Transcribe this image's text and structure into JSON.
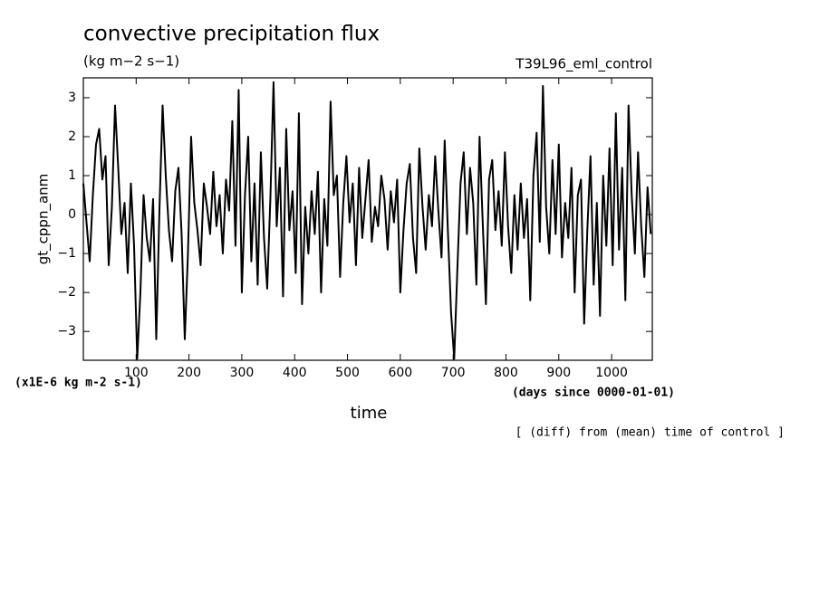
{
  "chart_data": {
    "type": "line",
    "title": "convective precipitation flux",
    "subtitle": "(kg m−2 s−1)",
    "run_label": "T39L96_eml_control",
    "ylabel": "gt_cppn_anm",
    "xlabel": "time",
    "y_unit_note": "(x1E-6 kg m-2 s-1)",
    "x_unit_note": "(days since 0000-01-01)",
    "footnote": "[ (diff) from (mean) time of control ]",
    "xlim": [
      0,
      1077
    ],
    "ylim": [
      -3.74,
      3.51
    ],
    "xticks": [
      100,
      200,
      300,
      400,
      500,
      600,
      700,
      800,
      900,
      1000
    ],
    "yticks": [
      {
        "value": -3,
        "label": "−3"
      },
      {
        "value": -2,
        "label": "−2"
      },
      {
        "value": -1,
        "label": "−1"
      },
      0,
      1,
      2,
      3
    ],
    "series": [
      {
        "color": "#000000",
        "x": [
          0,
          6,
          12,
          18,
          24,
          30,
          36,
          42,
          48,
          54,
          60,
          66,
          72,
          78,
          84,
          90,
          96,
          102,
          108,
          114,
          120,
          126,
          132,
          138,
          144,
          150,
          156,
          162,
          168,
          174,
          180,
          186,
          192,
          198,
          204,
          210,
          216,
          222,
          228,
          234,
          240,
          246,
          252,
          258,
          264,
          270,
          276,
          282,
          288,
          294,
          300,
          306,
          312,
          318,
          324,
          330,
          336,
          342,
          348,
          354,
          360,
          366,
          372,
          378,
          384,
          390,
          396,
          402,
          408,
          414,
          420,
          426,
          432,
          438,
          444,
          450,
          456,
          462,
          468,
          474,
          480,
          486,
          492,
          498,
          504,
          510,
          516,
          522,
          528,
          534,
          540,
          546,
          552,
          558,
          564,
          570,
          576,
          582,
          588,
          594,
          600,
          606,
          612,
          618,
          624,
          630,
          636,
          642,
          648,
          654,
          660,
          666,
          672,
          678,
          684,
          690,
          696,
          702,
          708,
          714,
          720,
          726,
          732,
          738,
          744,
          750,
          756,
          762,
          768,
          774,
          780,
          786,
          792,
          798,
          804,
          810,
          816,
          822,
          828,
          834,
          840,
          846,
          852,
          858,
          864,
          870,
          876,
          882,
          888,
          894,
          900,
          906,
          912,
          918,
          924,
          930,
          936,
          942,
          948,
          954,
          960,
          966,
          972,
          978,
          984,
          990,
          996,
          1002,
          1008,
          1014,
          1020,
          1026,
          1032,
          1038,
          1044,
          1050,
          1056,
          1062,
          1068,
          1074
        ],
        "values": [
          0.8,
          -0.2,
          -1.2,
          0.5,
          1.8,
          2.2,
          0.9,
          1.5,
          -1.3,
          0.2,
          2.8,
          1.2,
          -0.5,
          0.3,
          -1.5,
          0.8,
          -0.8,
          -3.7,
          -2.0,
          0.5,
          -0.6,
          -1.2,
          0.4,
          -3.2,
          0.1,
          2.8,
          1.0,
          -0.4,
          -1.2,
          0.6,
          1.2,
          -0.5,
          -3.2,
          -1.0,
          2.0,
          0.3,
          -0.4,
          -1.3,
          0.8,
          0.2,
          -0.5,
          1.1,
          -0.3,
          0.5,
          -1.0,
          0.9,
          0.1,
          2.4,
          -0.8,
          3.2,
          -2.0,
          0.5,
          2.0,
          -1.2,
          0.8,
          -1.8,
          1.6,
          -0.6,
          -1.9,
          0.4,
          3.4,
          -0.3,
          1.2,
          -2.1,
          2.2,
          -0.4,
          0.6,
          -1.5,
          2.6,
          -2.3,
          0.2,
          -1.0,
          0.6,
          -0.5,
          1.1,
          -2.0,
          0.4,
          -0.8,
          2.9,
          0.5,
          1.0,
          -1.6,
          0.3,
          1.5,
          -0.2,
          0.8,
          -1.3,
          1.2,
          -0.6,
          0.4,
          1.4,
          -0.7,
          0.2,
          -0.3,
          1.0,
          0.4,
          -0.9,
          0.6,
          -0.2,
          0.9,
          -2.0,
          -0.4,
          0.8,
          1.3,
          -0.6,
          -1.5,
          1.7,
          0.2,
          -0.9,
          0.5,
          -0.3,
          1.5,
          0.1,
          -1.1,
          1.9,
          -0.4,
          -2.5,
          -3.7,
          -1.4,
          0.8,
          1.6,
          -0.5,
          1.2,
          0.3,
          -1.8,
          2.0,
          -0.2,
          -2.3,
          0.9,
          1.4,
          -0.4,
          0.6,
          -0.8,
          1.6,
          -0.3,
          -1.5,
          0.5,
          -0.9,
          0.8,
          -0.6,
          0.4,
          -2.2,
          1.0,
          2.1,
          -0.7,
          3.3,
          0.2,
          -1.0,
          1.4,
          -0.5,
          1.8,
          -1.1,
          0.3,
          -0.6,
          1.2,
          -2.0,
          0.5,
          0.9,
          -2.8,
          -0.4,
          1.5,
          -1.8,
          0.3,
          -2.6,
          1.0,
          -0.8,
          1.7,
          -1.3,
          2.6,
          -0.9,
          1.2,
          -2.2,
          2.8,
          0.5,
          -1.0,
          1.6,
          -0.3,
          -1.6,
          0.7,
          -0.5
        ]
      }
    ]
  }
}
